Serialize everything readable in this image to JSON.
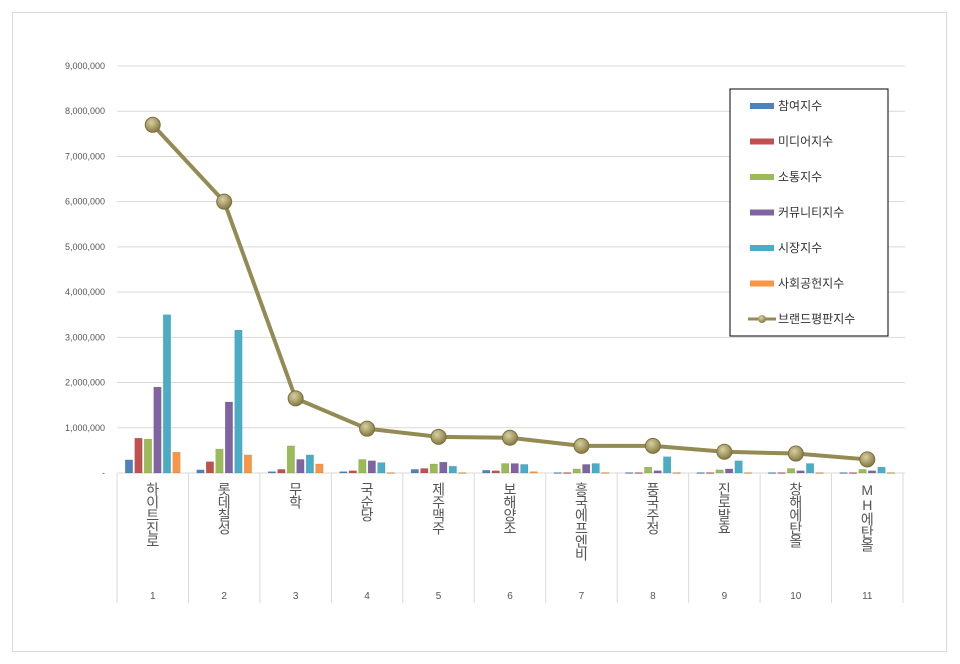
{
  "chart_data": {
    "type": "bar+line",
    "categories": [
      "하이트진로",
      "롯데칠성",
      "무학",
      "국순당",
      "제주맥주",
      "보해양조",
      "흥국에프엔비",
      "풍국주정",
      "진로발효",
      "창해에탄올",
      "MH에탄올"
    ],
    "ranks": [
      "1",
      "2",
      "3",
      "4",
      "5",
      "6",
      "7",
      "8",
      "9",
      "10",
      "11"
    ],
    "ylim": [
      0,
      9000000
    ],
    "yticks": [
      "-",
      "1,000,000",
      "2,000,000",
      "3,000,000",
      "4,000,000",
      "5,000,000",
      "6,000,000",
      "7,000,000",
      "8,000,000",
      "9,000,000"
    ],
    "grid": true,
    "legend_position": "top-right",
    "series": [
      {
        "name": "참여지수",
        "type": "bar",
        "color": "#4f81bd",
        "values": [
          290000,
          70000,
          30000,
          30000,
          80000,
          60000,
          10000,
          10000,
          10000,
          10000,
          10000
        ]
      },
      {
        "name": "미디어지수",
        "type": "bar",
        "color": "#c0504d",
        "values": [
          770000,
          250000,
          80000,
          50000,
          100000,
          50000,
          10000,
          10000,
          10000,
          10000,
          10000
        ]
      },
      {
        "name": "소통지수",
        "type": "bar",
        "color": "#9bbb59",
        "values": [
          750000,
          530000,
          600000,
          300000,
          200000,
          210000,
          90000,
          130000,
          70000,
          100000,
          80000
        ]
      },
      {
        "name": "커뮤니티지수",
        "type": "bar",
        "color": "#8064a2",
        "values": [
          1900000,
          1570000,
          300000,
          270000,
          240000,
          210000,
          190000,
          50000,
          90000,
          50000,
          50000
        ]
      },
      {
        "name": "시장지수",
        "type": "bar",
        "color": "#4bacc6",
        "values": [
          3500000,
          3160000,
          400000,
          230000,
          150000,
          190000,
          210000,
          360000,
          270000,
          210000,
          130000
        ]
      },
      {
        "name": "사회공헌지수",
        "type": "bar",
        "color": "#f79646",
        "values": [
          460000,
          400000,
          200000,
          10000,
          10000,
          30000,
          10000,
          10000,
          10000,
          10000,
          10000
        ]
      },
      {
        "name": "브랜드평판지수",
        "type": "line",
        "color": "#948a54",
        "values": [
          7700000,
          6000000,
          1650000,
          980000,
          800000,
          780000,
          600000,
          600000,
          470000,
          430000,
          300000
        ]
      }
    ]
  }
}
